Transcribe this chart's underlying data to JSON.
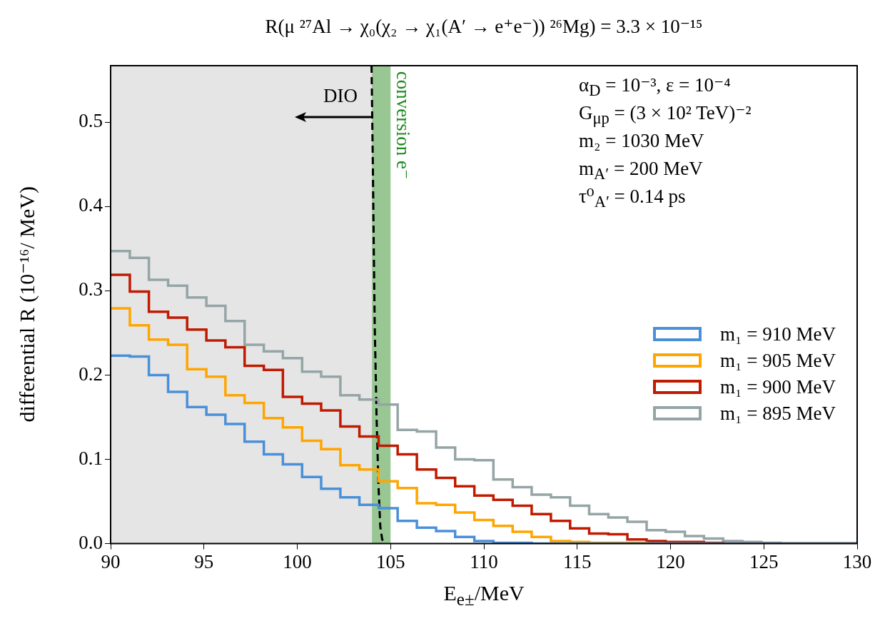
{
  "chart_data": {
    "type": "histogram",
    "title": "R(μ ²⁷Al → χ₀(χ₂ → χ₁(A′ → e⁺e⁻)) ²⁶Mg) = 3.3 × 10⁻¹⁵",
    "xlabel": "E$_{e±}$/MeV",
    "ylabel": "differential R (10⁻¹⁶/ MeV)",
    "bins": [
      90,
      91.03,
      92.05,
      93.08,
      94.1,
      95.13,
      96.15,
      97.18,
      98.21,
      99.23,
      100.26,
      101.28,
      102.31,
      103.33,
      104.36,
      105.38,
      106.41,
      107.44,
      108.46,
      109.49,
      110.51,
      111.54,
      112.56,
      113.59,
      114.62,
      115.64,
      116.67,
      117.69,
      118.72,
      119.74,
      120.77,
      121.79,
      122.82,
      123.85,
      124.87,
      125.9,
      126.92,
      127.95,
      128.97,
      130
    ],
    "series": [
      {
        "name": "m₁ = 910 MeV",
        "color": "#4a90d9",
        "values": [
          0.223,
          0.222,
          0.2,
          0.18,
          0.162,
          0.153,
          0.142,
          0.121,
          0.106,
          0.094,
          0.079,
          0.065,
          0.055,
          0.046,
          0.042,
          0.027,
          0.019,
          0.015,
          0.008,
          0.003,
          0.001,
          0.001,
          0,
          0,
          0,
          0,
          0,
          0,
          0,
          0,
          0,
          0,
          0,
          0,
          0,
          0,
          0,
          0,
          0
        ]
      },
      {
        "name": "m₁ = 905 MeV",
        "color": "#ffa500",
        "values": [
          0.279,
          0.259,
          0.242,
          0.236,
          0.207,
          0.198,
          0.176,
          0.167,
          0.149,
          0.138,
          0.122,
          0.112,
          0.093,
          0.088,
          0.074,
          0.066,
          0.048,
          0.046,
          0.037,
          0.028,
          0.021,
          0.014,
          0.008,
          0.003,
          0.002,
          0.001,
          0.001,
          0.001,
          0,
          0,
          0,
          0,
          0,
          0,
          0,
          0,
          0,
          0,
          0
        ]
      },
      {
        "name": "m₁ = 900 MeV",
        "color": "#c01a00",
        "values": [
          0.319,
          0.299,
          0.275,
          0.268,
          0.254,
          0.241,
          0.233,
          0.211,
          0.206,
          0.174,
          0.166,
          0.158,
          0.139,
          0.127,
          0.116,
          0.106,
          0.088,
          0.078,
          0.068,
          0.057,
          0.052,
          0.045,
          0.035,
          0.027,
          0.018,
          0.012,
          0.011,
          0.005,
          0.003,
          0.002,
          0.002,
          0.001,
          0,
          0,
          0,
          0,
          0,
          0,
          0
        ]
      },
      {
        "name": "m₁ = 895 MeV",
        "color": "#95a5a6",
        "values": [
          0.347,
          0.339,
          0.313,
          0.306,
          0.292,
          0.282,
          0.264,
          0.236,
          0.228,
          0.22,
          0.204,
          0.198,
          0.176,
          0.171,
          0.165,
          0.135,
          0.133,
          0.114,
          0.1,
          0.099,
          0.076,
          0.067,
          0.058,
          0.055,
          0.045,
          0.035,
          0.031,
          0.026,
          0.016,
          0.014,
          0.009,
          0.006,
          0.003,
          0.002,
          0.001,
          0,
          0,
          0,
          0
        ]
      },
      {
        "type": "line",
        "color": "#000000",
        "line_style": "dashed",
        "x": [
          103.98,
          104.05,
          104.1,
          104.15,
          104.25,
          104.35,
          104.45,
          104.55,
          104.7
        ],
        "values": [
          0.567,
          0.45,
          0.35,
          0.26,
          0.15,
          0.07,
          0.02,
          0.005,
          0
        ]
      }
    ],
    "bands": [
      {
        "axis": "x",
        "from": 90,
        "to": 104,
        "color": "#e5e5e5"
      },
      {
        "axis": "x",
        "from": 104,
        "to": 105,
        "color": "#99c794",
        "label": "conversion e⁻"
      }
    ],
    "annotations": [
      "DIO",
      "α$_{D}$ = 10⁻³, ε = 10⁻⁴",
      "G$_{μp}$ = (3 × 10² TeV)⁻²",
      "m₂ = 1030 MeV",
      "m$_{A′}$ = 200 MeV",
      "τ⁰$_{A′}$ = 0.14 ps"
    ],
    "xlim": [
      90,
      130
    ],
    "xticks": [
      90,
      95,
      100,
      105,
      110,
      115,
      120,
      125,
      130
    ],
    "ylim": [
      0,
      0.567
    ],
    "yticks": [
      {
        "value": 0,
        "label": "0.0"
      },
      {
        "value": 0.1,
        "label": "0.1"
      },
      {
        "value": 0.2,
        "label": "0.2"
      },
      {
        "value": 0.3,
        "label": "0.3"
      },
      {
        "value": 0.4,
        "label": "0.4"
      },
      {
        "value": 0.5,
        "label": "0.5"
      }
    ],
    "grid": false,
    "legend": "right"
  }
}
